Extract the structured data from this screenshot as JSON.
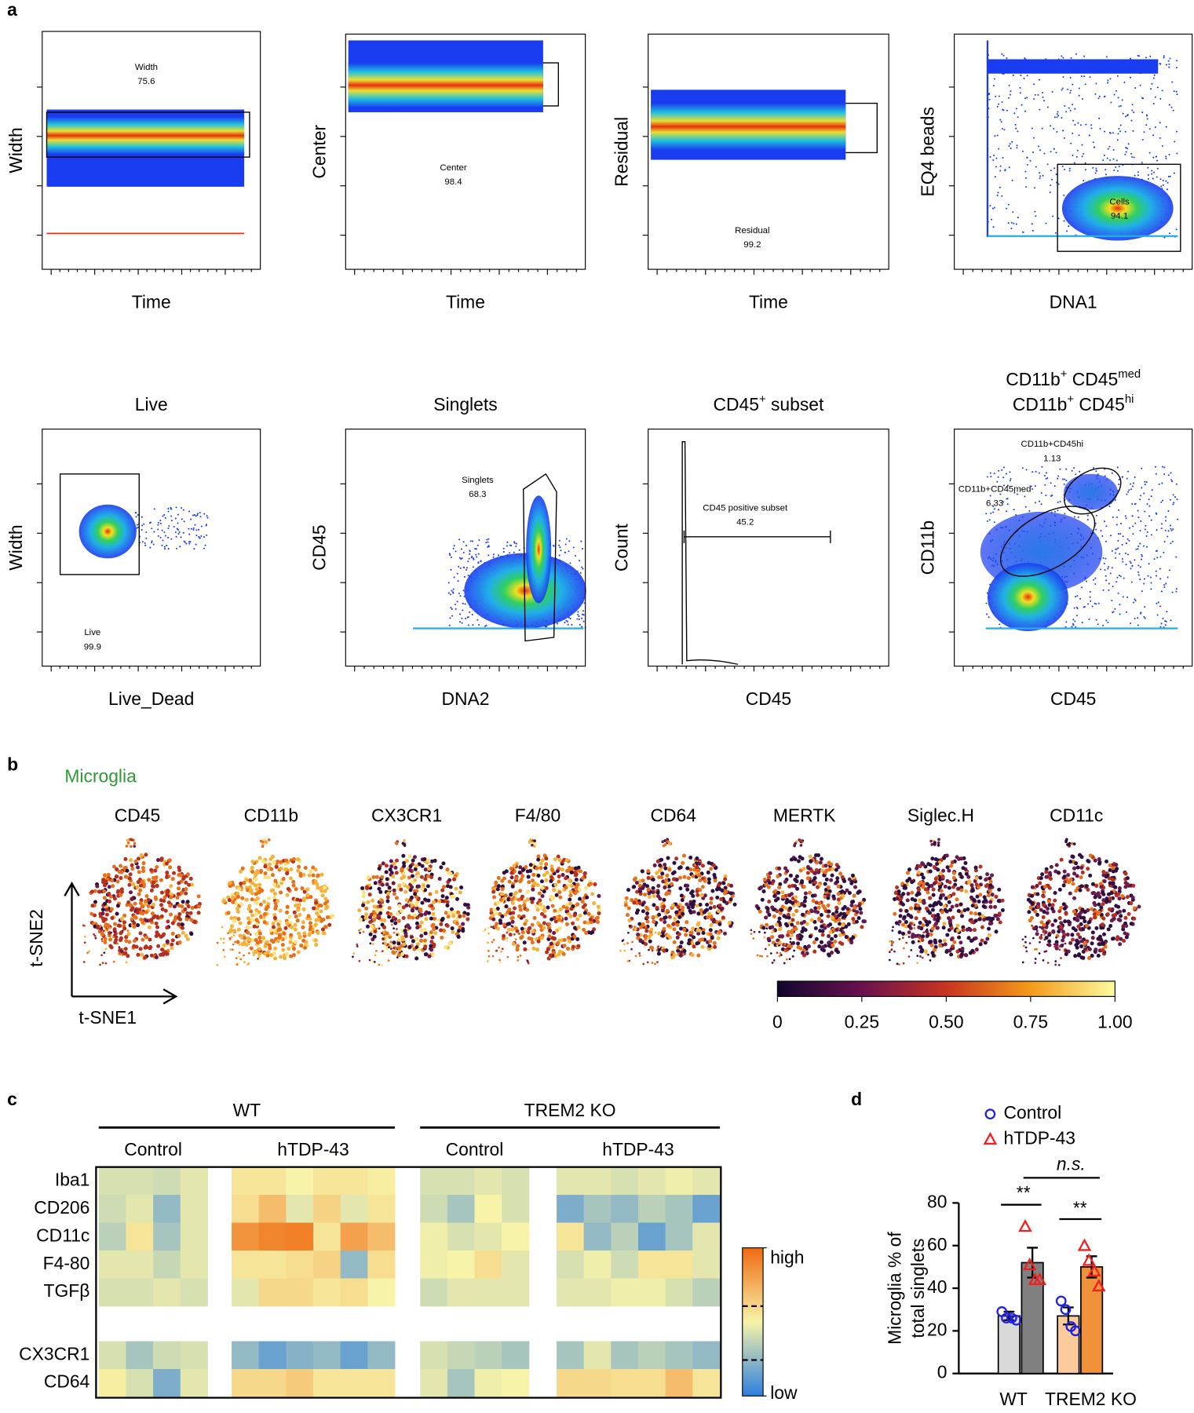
{
  "panel_a": {
    "label": "a",
    "plots": [
      {
        "x_label": "Time",
        "y_label": "Width",
        "title_lines": [],
        "gates": [
          {
            "name": "Width",
            "value": 75.6
          }
        ]
      },
      {
        "x_label": "Time",
        "y_label": "Center",
        "title_lines": [],
        "gates": [
          {
            "name": "Center",
            "value": 98.4
          }
        ]
      },
      {
        "x_label": "Time",
        "y_label": "Residual",
        "title_lines": [],
        "gates": [
          {
            "name": "Residual",
            "value": 99.2
          }
        ]
      },
      {
        "x_label": "DNA1",
        "y_label": "EQ4 beads",
        "title_lines": [],
        "gates": [
          {
            "name": "Cells",
            "value": 94.1
          }
        ]
      },
      {
        "x_label": "Live_Dead",
        "y_label": "Width",
        "title_lines": [
          [
            {
              "text": "Live"
            }
          ]
        ],
        "gates": [
          {
            "name": "Live",
            "value": 99.9
          }
        ]
      },
      {
        "x_label": "DNA2",
        "y_label": "CD45",
        "title_lines": [
          [
            {
              "text": "Singlets"
            }
          ]
        ],
        "gates": [
          {
            "name": "Singlets",
            "value": 68.3
          }
        ]
      },
      {
        "x_label": "CD45",
        "y_label": "Count",
        "title_lines": [
          [
            {
              "text": "CD45"
            },
            {
              "text": "+",
              "sup": true
            },
            {
              "text": " subset"
            }
          ]
        ],
        "gates": [
          {
            "name": "CD45 positive subset",
            "value": 45.2
          }
        ]
      },
      {
        "x_label": "CD45",
        "y_label": "CD11b",
        "title_lines": [
          [
            {
              "text": "CD11b"
            },
            {
              "text": "+",
              "sup": true
            },
            {
              "text": " CD45"
            },
            {
              "text": "med",
              "sup": true
            }
          ],
          [
            {
              "text": "CD11b"
            },
            {
              "text": "+",
              "sup": true
            },
            {
              "text": " CD45"
            },
            {
              "text": "hi",
              "sup": true
            }
          ]
        ],
        "gates": [
          {
            "name": "CD11b+CD45hi",
            "value": 1.13
          },
          {
            "name": "CD11b+CD45med",
            "value": 6.33
          }
        ]
      }
    ]
  },
  "panel_b": {
    "label": "b",
    "subtitle": "Microglia",
    "markers": [
      "CD45",
      "CD11b",
      "CX3CR1",
      "F4/80",
      "CD64",
      "MERTK",
      "Siglec.H",
      "CD11c"
    ],
    "x_label": "t-SNE1",
    "y_label": "t-SNE2",
    "colorbar": {
      "clim": [
        0,
        1
      ],
      "ticks": [
        0,
        {
          "value": 0.25,
          "label": "0.25"
        },
        {
          "value": 0.5,
          "label": "0.50"
        },
        {
          "value": 0.75,
          "label": "0.75"
        },
        {
          "value": 1,
          "label": "1.00"
        }
      ]
    }
  },
  "chart_data": [
    {
      "type": "heatmap",
      "label": "c",
      "groups": [
        {
          "name": "WT",
          "subgroups": [
            "Control",
            "hTDP-43"
          ]
        },
        {
          "name": "TREM2 KO",
          "subgroups": [
            "Control",
            "hTDP-43"
          ]
        }
      ],
      "rows": [
        {
          "name": "Iba1",
          "values": [
            [
              0.42,
              0.42,
              0.4,
              0.45
            ],
            [
              0.55,
              0.55,
              0.5,
              0.55,
              0.55,
              0.52
            ],
            [
              0.42,
              0.42,
              0.45,
              0.42
            ],
            [
              0.45,
              0.45,
              0.42,
              0.45,
              0.48,
              0.45
            ]
          ]
        },
        {
          "name": "CD206",
          "values": [
            [
              0.4,
              0.45,
              0.25,
              0.45
            ],
            [
              0.58,
              0.7,
              0.45,
              0.62,
              0.45,
              0.55
            ],
            [
              0.4,
              0.3,
              0.5,
              0.42
            ],
            [
              0.2,
              0.3,
              0.25,
              0.35,
              0.3,
              0.15
            ]
          ]
        },
        {
          "name": "CD11c",
          "values": [
            [
              0.35,
              0.55,
              0.3,
              0.45
            ],
            [
              0.85,
              0.9,
              0.92,
              0.55,
              0.8,
              0.7
            ],
            [
              0.48,
              0.42,
              0.45,
              0.5
            ],
            [
              0.55,
              0.25,
              0.35,
              0.15,
              0.3,
              0.45
            ]
          ]
        },
        {
          "name": "F4-80",
          "values": [
            [
              0.45,
              0.45,
              0.38,
              0.45
            ],
            [
              0.55,
              0.55,
              0.58,
              0.62,
              0.25,
              0.58
            ],
            [
              0.48,
              0.5,
              0.58,
              0.45
            ],
            [
              0.42,
              0.48,
              0.4,
              0.55,
              0.55,
              0.45
            ]
          ]
        },
        {
          "name": "TGFβ",
          "values": [
            [
              0.42,
              0.42,
              0.45,
              0.42
            ],
            [
              0.45,
              0.6,
              0.6,
              0.55,
              0.58,
              0.5
            ],
            [
              0.4,
              0.45,
              0.45,
              0.45
            ],
            [
              0.45,
              0.45,
              0.48,
              0.48,
              0.42,
              0.35
            ]
          ]
        },
        {
          "name": "CX3CR1",
          "values": [
            [
              0.42,
              0.3,
              0.4,
              0.42
            ],
            [
              0.25,
              0.15,
              0.22,
              0.25,
              0.15,
              0.25
            ],
            [
              0.42,
              0.38,
              0.35,
              0.3
            ],
            [
              0.3,
              0.45,
              0.3,
              0.35,
              0.3,
              0.25
            ]
          ]
        },
        {
          "name": "CD64",
          "values": [
            [
              0.52,
              0.42,
              0.2,
              0.45
            ],
            [
              0.6,
              0.6,
              0.65,
              0.55,
              0.55,
              0.55
            ],
            [
              0.45,
              0.3,
              0.48,
              0.5
            ],
            [
              0.6,
              0.6,
              0.58,
              0.58,
              0.7,
              0.55
            ]
          ]
        }
      ],
      "colormap": [
        "#2c7fe0",
        "#f7f3a8",
        "#f06a10"
      ],
      "zlim": [
        0,
        1
      ],
      "zticks": [
        {
          "value": 1,
          "label": "high"
        },
        {
          "value": 0,
          "label": "low"
        }
      ]
    },
    {
      "type": "bar",
      "label": "d",
      "ylabel_lines": [
        "Microglia % of",
        "total singlets"
      ],
      "categories": [
        "WT",
        "TREM2 KO"
      ],
      "ylim": [
        0,
        80
      ],
      "yticks": [
        0,
        20,
        40,
        60,
        80
      ],
      "series": [
        {
          "name": "Control",
          "marker": "circle",
          "marker_color": "#1f1fe0",
          "bar_colors": [
            "#d9d9d9",
            "#fccb9c"
          ],
          "values": [
            27,
            27
          ],
          "errors": [
            2,
            4
          ],
          "points": [
            [
              29,
              26,
              26,
              25
            ],
            [
              34,
              30,
              22,
              20
            ]
          ]
        },
        {
          "name": "hTDP-43",
          "marker": "triangle",
          "marker_color": "#f02020",
          "bar_colors": [
            "#808080",
            "#f0923a"
          ],
          "values": [
            52,
            50
          ],
          "errors": [
            7,
            5
          ],
          "points": [
            [
              69,
              51,
              44,
              44
            ],
            [
              60,
              53,
              48,
              41
            ]
          ]
        }
      ],
      "annotations": [
        "**",
        "**",
        "n.s."
      ]
    }
  ]
}
